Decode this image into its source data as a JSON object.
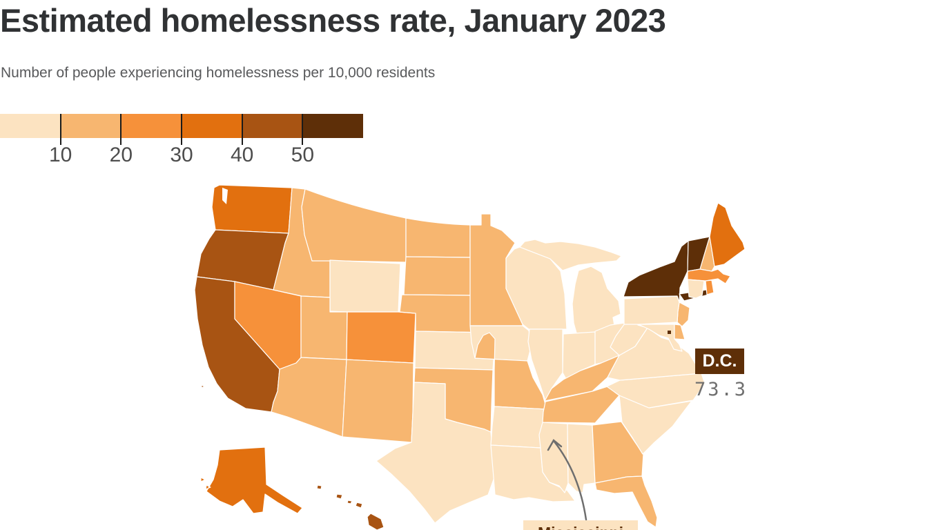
{
  "header": {
    "title": "Estimated homelessness rate, January 2023",
    "subtitle": "Number of people experiencing homelessness per 10,000 residents"
  },
  "legend": {
    "tick_labels": [
      "10",
      "20",
      "30",
      "40",
      "50"
    ],
    "tick_color": "#1a1a1a",
    "label_color": "#4d4d4d"
  },
  "map": {
    "stroke_color": "#ffffff"
  },
  "annotations": {
    "dc": {
      "label": "D.C.",
      "value": "73.3",
      "box_color": "#5e2f08",
      "label_color": "#ffffff",
      "value_color": "#6f6f6f"
    },
    "mississippi": {
      "label": "Mississippi",
      "box_color": "#fce3c1",
      "label_color": "#5e2f08",
      "arrow_color": "#6e6e6e"
    }
  },
  "chart_data": {
    "type": "choropleth",
    "title": "Estimated homelessness rate, January 2023",
    "subtitle": "Number of people experiencing homelessness per 10,000 residents",
    "unit": "people experiencing homelessness per 10,000 residents",
    "date": "January 2023",
    "legend_breaks": [
      10,
      20,
      30,
      40,
      50
    ],
    "legend_position": "top-left",
    "bins": [
      {
        "range": "under 10",
        "color": "#fce3c1"
      },
      {
        "range": "10–20",
        "color": "#f7b670"
      },
      {
        "range": "20–30",
        "color": "#f6913a"
      },
      {
        "range": "30–40",
        "color": "#e2700f"
      },
      {
        "range": "40–50",
        "color": "#a85413"
      },
      {
        "range": "50+",
        "color": "#5e2f08"
      }
    ],
    "state_bins": {
      "WA": 4,
      "OR": 5,
      "CA": 5,
      "NV": 3,
      "ID": 2,
      "MT": 2,
      "WY": 1,
      "UT": 2,
      "CO": 3,
      "AZ": 2,
      "NM": 2,
      "TX": 1,
      "OK": 2,
      "KS": 1,
      "NE": 2,
      "SD": 2,
      "ND": 2,
      "MN": 2,
      "IA": 1,
      "MO": 2,
      "AR": 1,
      "LA": 1,
      "WI": 1,
      "IL": 1,
      "MI": 1,
      "IN": 1,
      "OH": 1,
      "KY": 2,
      "TN": 2,
      "MS": 1,
      "AL": 1,
      "GA": 2,
      "FL": 2,
      "SC": 1,
      "NC": 1,
      "VA": 1,
      "WV": 1,
      "MD": 1,
      "DE": 2,
      "NJ": 2,
      "PA": 1,
      "NY": 6,
      "VT": 6,
      "NH": 2,
      "ME": 4,
      "MA": 3,
      "RI": 3,
      "CT": 1,
      "AK": 4,
      "HI": 5,
      "DC": 6
    },
    "labeled_values": {
      "DC": 73.3
    },
    "callouts": [
      "D.C.",
      "Mississippi"
    ]
  }
}
